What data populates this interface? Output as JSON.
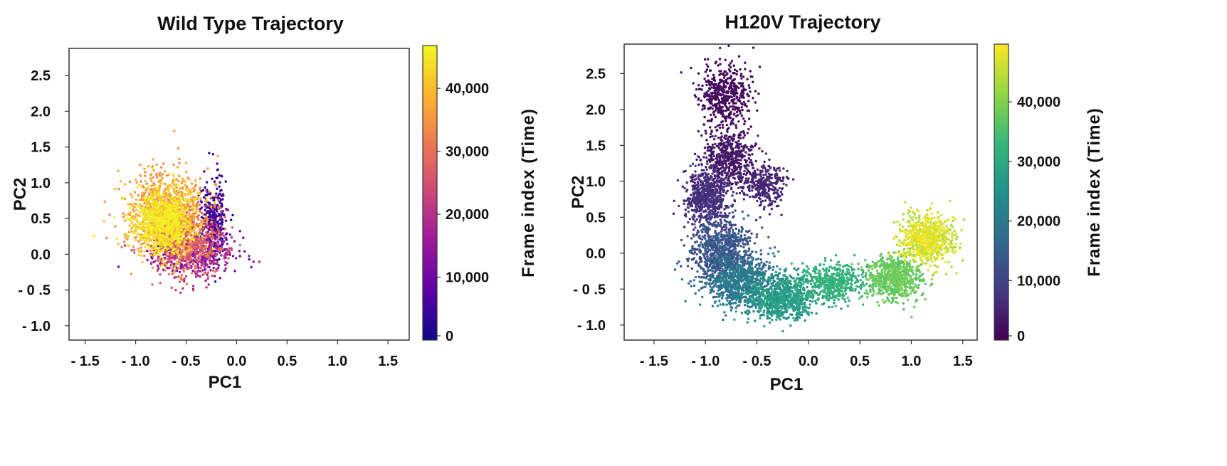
{
  "chart_data": [
    {
      "type": "scatter",
      "title": "Wild Type  Trajectory",
      "xlabel": "PC1",
      "ylabel": "PC2",
      "xlim": [
        -1.66,
        1.71
      ],
      "ylim": [
        -1.2,
        2.88
      ],
      "xticks": {
        "values": [
          -1.5,
          -1.0,
          -0.5,
          0.0,
          0.5,
          1.0,
          1.5
        ],
        "labels": [
          "- 1.5",
          "- 1.0",
          "- 0.5",
          "0.0",
          "0.5",
          "1.0",
          "1.5"
        ]
      },
      "yticks": {
        "values": [
          -1.0,
          -0.5,
          0.0,
          0.5,
          1.0,
          1.5,
          2.0,
          2.5
        ],
        "labels": [
          "- 1.0",
          "- 0 .5",
          "0.0",
          "0.5",
          "1.0",
          "1.5",
          "2.0",
          "2.5"
        ]
      },
      "grid": false,
      "colorbar": {
        "label": "Frame  index   (Time)",
        "colormap": "plasma",
        "range": [
          0,
          46800
        ],
        "ticks": {
          "values": [
            0,
            10000,
            20000,
            30000,
            40000
          ],
          "labels": [
            "0",
            "10,000",
            "20,000",
            "30,000",
            "40,000"
          ]
        },
        "colors": [
          "#0d0887",
          "#5c01a6",
          "#9c179e",
          "#cc4778",
          "#ed7953",
          "#fdb42f",
          "#f0f921"
        ]
      },
      "clusters": [
        {
          "frames": [
            0,
            8000
          ],
          "center": [
            -0.22,
            0.5
          ],
          "spread": [
            0.06,
            0.28
          ],
          "relative_density": 2
        },
        {
          "frames": [
            8000,
            20000
          ],
          "center": [
            -0.45,
            0.05
          ],
          "spread": [
            0.2,
            0.17
          ],
          "relative_density": 3
        },
        {
          "frames": [
            20000,
            32000
          ],
          "center": [
            -0.48,
            0.2
          ],
          "spread": [
            0.18,
            0.24
          ],
          "relative_density": 4
        },
        {
          "frames": [
            32000,
            40000
          ],
          "center": [
            -0.7,
            0.62
          ],
          "spread": [
            0.2,
            0.28
          ],
          "relative_density": 5
        },
        {
          "frames": [
            40000,
            46800
          ],
          "center": [
            -0.72,
            0.45
          ],
          "spread": [
            0.15,
            0.22
          ],
          "relative_density": 6
        }
      ]
    },
    {
      "type": "scatter",
      "title": "H120V  Trajectory",
      "xlabel": "PC1",
      "ylabel": "PC2",
      "xlim": [
        -1.79,
        1.64
      ],
      "ylim": [
        -1.21,
        2.91
      ],
      "xticks": {
        "values": [
          -1.5,
          -1.0,
          -0.5,
          0.0,
          0.5,
          1.0,
          1.5
        ],
        "labels": [
          "- 1.5",
          "- 1.0",
          "- 0.5",
          "0.0",
          "0.5",
          "1.0",
          "1.5"
        ]
      },
      "yticks": {
        "values": [
          -1.0,
          -0.5,
          0.0,
          0.5,
          1.0,
          1.5,
          2.0,
          2.5
        ],
        "labels": [
          "- 1.0",
          "- 0 .5",
          "0.0",
          "0.5",
          "1.0",
          "1.5",
          "2.0",
          "2.5"
        ]
      },
      "grid": false,
      "colorbar": {
        "label": "Frame  index   (Time)",
        "colormap": "viridis",
        "range": [
          0,
          49700
        ],
        "ticks": {
          "values": [
            0,
            10000,
            20000,
            30000,
            40000
          ],
          "labels": [
            "0",
            "10,000",
            "20,000",
            "30,000",
            "40,000"
          ]
        },
        "colors": [
          "#440154",
          "#443983",
          "#31688e",
          "#21918c",
          "#35b779",
          "#90d743",
          "#fde725"
        ]
      },
      "clusters": [
        {
          "frames": [
            0,
            2000
          ],
          "center": [
            -0.82,
            2.2
          ],
          "spread": [
            0.12,
            0.22
          ],
          "relative_density": 3
        },
        {
          "frames": [
            2000,
            4000
          ],
          "center": [
            -0.78,
            1.35
          ],
          "spread": [
            0.12,
            0.2
          ],
          "relative_density": 3
        },
        {
          "frames": [
            4000,
            6000
          ],
          "center": [
            -0.45,
            0.95
          ],
          "spread": [
            0.12,
            0.15
          ],
          "relative_density": 2
        },
        {
          "frames": [
            4000,
            8000
          ],
          "center": [
            -0.98,
            0.8
          ],
          "spread": [
            0.1,
            0.2
          ],
          "relative_density": 4
        },
        {
          "frames": [
            8000,
            16000
          ],
          "center": [
            -0.85,
            0.05
          ],
          "spread": [
            0.15,
            0.22
          ],
          "relative_density": 5
        },
        {
          "frames": [
            16000,
            22000
          ],
          "center": [
            -0.65,
            -0.4
          ],
          "spread": [
            0.17,
            0.17
          ],
          "relative_density": 5
        },
        {
          "frames": [
            22000,
            30000
          ],
          "center": [
            -0.25,
            -0.62
          ],
          "spread": [
            0.17,
            0.15
          ],
          "relative_density": 5
        },
        {
          "frames": [
            28000,
            34000
          ],
          "center": [
            0.25,
            -0.4
          ],
          "spread": [
            0.15,
            0.13
          ],
          "relative_density": 3
        },
        {
          "frames": [
            34000,
            40000
          ],
          "center": [
            0.85,
            -0.35
          ],
          "spread": [
            0.13,
            0.15
          ],
          "relative_density": 4
        },
        {
          "frames": [
            42000,
            49700
          ],
          "center": [
            1.15,
            0.2
          ],
          "spread": [
            0.13,
            0.17
          ],
          "relative_density": 5
        }
      ]
    }
  ]
}
